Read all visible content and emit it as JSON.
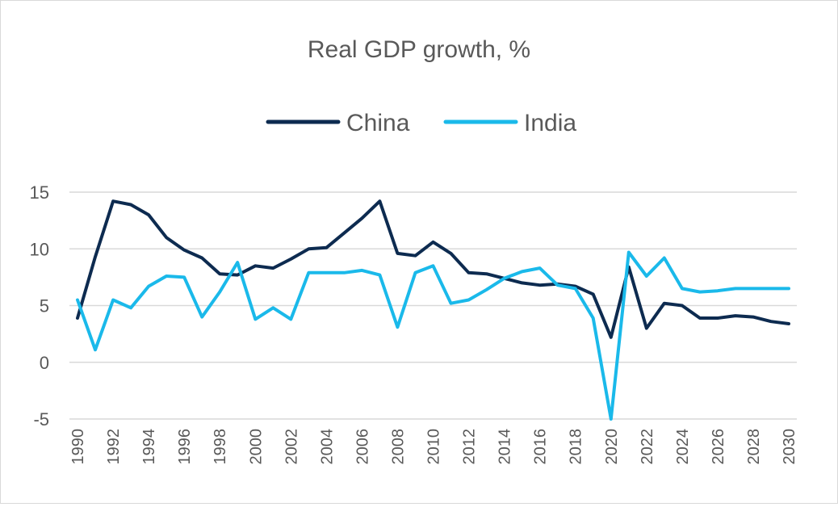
{
  "chart_data": {
    "type": "line",
    "title": "Real GDP growth, %",
    "xlabel": "",
    "ylabel": "",
    "ylim": [
      -5,
      15
    ],
    "yticks": [
      "15",
      "10",
      "5",
      "0",
      "-5"
    ],
    "ytick_values": [
      15,
      10,
      5,
      0,
      -5
    ],
    "grid": true,
    "legend_position": "top-center",
    "x": [
      1990,
      1991,
      1992,
      1993,
      1994,
      1995,
      1996,
      1997,
      1998,
      1999,
      2000,
      2001,
      2002,
      2003,
      2004,
      2005,
      2006,
      2007,
      2008,
      2009,
      2010,
      2011,
      2012,
      2013,
      2014,
      2015,
      2016,
      2017,
      2018,
      2019,
      2020,
      2021,
      2022,
      2023,
      2024,
      2025,
      2026,
      2027,
      2028,
      2029,
      2030
    ],
    "xtick_labels": [
      "1990",
      "1992",
      "1994",
      "1996",
      "1998",
      "2000",
      "2002",
      "2004",
      "2006",
      "2008",
      "2010",
      "2012",
      "2014",
      "2016",
      "2018",
      "2020",
      "2022",
      "2024",
      "2026",
      "2028",
      "2030"
    ],
    "series": [
      {
        "name": "China",
        "color": "#0d2b50",
        "values": [
          3.9,
          9.3,
          14.2,
          13.9,
          13.0,
          11.0,
          9.9,
          9.2,
          7.8,
          7.7,
          8.5,
          8.3,
          9.1,
          10.0,
          10.1,
          11.4,
          12.7,
          14.2,
          9.6,
          9.4,
          10.6,
          9.6,
          7.9,
          7.8,
          7.4,
          7.0,
          6.8,
          6.9,
          6.7,
          6.0,
          2.2,
          8.4,
          3.0,
          5.2,
          5.0,
          3.9,
          3.9,
          4.1,
          4.0,
          3.6,
          3.4
        ]
      },
      {
        "name": "India",
        "color": "#1ab9ea",
        "values": [
          5.5,
          1.1,
          5.5,
          4.8,
          6.7,
          7.6,
          7.5,
          4.0,
          6.2,
          8.8,
          3.8,
          4.8,
          3.8,
          7.9,
          7.9,
          7.9,
          8.1,
          7.7,
          3.1,
          7.9,
          8.5,
          5.2,
          5.5,
          6.4,
          7.4,
          8.0,
          8.3,
          6.8,
          6.5,
          3.9,
          -5.8,
          9.7,
          7.6,
          9.2,
          6.5,
          6.2,
          6.3,
          6.5,
          6.5,
          6.5,
          6.5
        ]
      }
    ]
  }
}
